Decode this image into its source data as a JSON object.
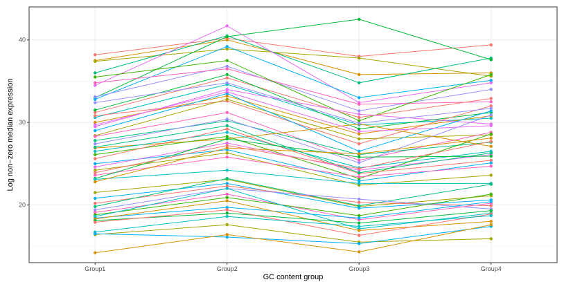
{
  "chart_data": {
    "type": "line",
    "xlabel": "GC content group",
    "ylabel": "Log non−zero median expression",
    "categories": [
      "Group1",
      "Group2",
      "Group3",
      "Group4"
    ],
    "ylim": [
      13.0,
      44.0
    ],
    "yticks": [
      20,
      30,
      40
    ],
    "grid": true,
    "legend": "none",
    "series": [
      {
        "color": "#F8766D",
        "values": [
          38.2,
          40.2,
          38.0,
          39.4
        ]
      },
      {
        "color": "#D89000",
        "values": [
          37.5,
          40.0,
          35.8,
          36.0
        ]
      },
      {
        "color": "#A3A500",
        "values": [
          37.4,
          38.9,
          37.8,
          35.6
        ]
      },
      {
        "color": "#00BF7D",
        "values": [
          36.0,
          40.5,
          34.8,
          37.8
        ]
      },
      {
        "color": "#E76BF3",
        "values": [
          34.5,
          41.7,
          32.4,
          34.8
        ]
      },
      {
        "color": "#00BA38",
        "values": [
          33.0,
          40.4,
          42.5,
          37.6
        ]
      },
      {
        "color": "#00B0F6",
        "values": [
          32.8,
          39.2,
          33.0,
          35.1
        ]
      },
      {
        "color": "#9590FF",
        "values": [
          33.1,
          36.8,
          31.4,
          34.0
        ]
      },
      {
        "color": "#FF62BC",
        "values": [
          34.8,
          36.5,
          32.2,
          32.5
        ]
      },
      {
        "color": "#39B600",
        "values": [
          35.5,
          37.5,
          30.2,
          35.8
        ]
      },
      {
        "color": "#F8766D",
        "values": [
          31.2,
          35.4,
          30.6,
          32.9
        ]
      },
      {
        "color": "#00BFC4",
        "values": [
          30.6,
          34.6,
          29.7,
          30.5
        ]
      },
      {
        "color": "#D89000",
        "values": [
          30.0,
          33.2,
          28.6,
          30.8
        ]
      },
      {
        "color": "#E76BF3",
        "values": [
          29.5,
          34.0,
          31.0,
          29.8
        ]
      },
      {
        "color": "#00BA38",
        "values": [
          31.5,
          35.8,
          29.2,
          31.2
        ]
      },
      {
        "color": "#F8766D",
        "values": [
          30.8,
          32.6,
          27.4,
          32.0
        ]
      },
      {
        "color": "#A3A500",
        "values": [
          28.4,
          32.8,
          28.0,
          28.5
        ]
      },
      {
        "color": "#00B0F6",
        "values": [
          29.0,
          33.5,
          26.5,
          31.4
        ]
      },
      {
        "color": "#FF62BC",
        "values": [
          28.3,
          31.2,
          25.4,
          28.8
        ]
      },
      {
        "color": "#00BF7D",
        "values": [
          27.8,
          30.2,
          26.1,
          27.6
        ]
      },
      {
        "color": "#9590FF",
        "values": [
          27.4,
          30.4,
          25.1,
          30.9
        ]
      },
      {
        "color": "#D89000",
        "values": [
          26.9,
          28.0,
          29.8,
          27.1
        ]
      },
      {
        "color": "#00BFC4",
        "values": [
          26.5,
          28.8,
          24.5,
          26.5
        ]
      },
      {
        "color": "#39B600",
        "values": [
          26.1,
          28.3,
          23.2,
          28.6
        ]
      },
      {
        "color": "#F8766D",
        "values": [
          25.6,
          29.2,
          23.8,
          25.4
        ]
      },
      {
        "color": "#00B0F6",
        "values": [
          25.0,
          26.7,
          22.9,
          25.1
        ]
      },
      {
        "color": "#E76BF3",
        "values": [
          24.6,
          27.5,
          24.2,
          26.1
        ]
      },
      {
        "color": "#A3A500",
        "values": [
          24.2,
          26.3,
          22.4,
          23.6
        ]
      },
      {
        "color": "#FF62BC",
        "values": [
          23.6,
          25.8,
          23.4,
          24.7
        ]
      },
      {
        "color": "#00BA38",
        "values": [
          23.2,
          28.0,
          25.8,
          25.9
        ]
      },
      {
        "color": "#00BFC4",
        "values": [
          23.1,
          24.2,
          22.6,
          22.6
        ]
      },
      {
        "color": "#D89000",
        "values": [
          22.8,
          26.9,
          26.2,
          28.1
        ]
      },
      {
        "color": "#A3A500",
        "values": [
          21.5,
          23.1,
          19.8,
          21.1
        ]
      },
      {
        "color": "#00B0F6",
        "values": [
          20.8,
          22.6,
          19.6,
          20.6
        ]
      },
      {
        "color": "#F8766D",
        "values": [
          20.2,
          22.3,
          20.3,
          19.9
        ]
      },
      {
        "color": "#00BF7D",
        "values": [
          19.8,
          23.2,
          19.9,
          22.5
        ]
      },
      {
        "color": "#9590FF",
        "values": [
          19.4,
          22.0,
          20.7,
          19.5
        ]
      },
      {
        "color": "#FF62BC",
        "values": [
          19.1,
          21.3,
          18.2,
          20.2
        ]
      },
      {
        "color": "#39B600",
        "values": [
          18.8,
          20.9,
          18.7,
          21.3
        ]
      },
      {
        "color": "#00BFC4",
        "values": [
          18.6,
          22.0,
          17.1,
          19.0
        ]
      },
      {
        "color": "#00B0F6",
        "values": [
          18.4,
          19.7,
          18.4,
          20.4
        ]
      },
      {
        "color": "#D89000",
        "values": [
          18.3,
          20.5,
          16.9,
          18.0
        ]
      },
      {
        "color": "#00BA38",
        "values": [
          18.1,
          19.0,
          17.8,
          19.3
        ]
      },
      {
        "color": "#F8766D",
        "values": [
          17.9,
          19.4,
          16.3,
          18.9
        ]
      },
      {
        "color": "#00BFC4",
        "values": [
          16.7,
          18.6,
          17.4,
          18.7
        ]
      },
      {
        "color": "#A3A500",
        "values": [
          16.4,
          17.6,
          15.5,
          15.9
        ]
      },
      {
        "color": "#00B0F6",
        "values": [
          16.5,
          16.1,
          15.3,
          17.4
        ]
      },
      {
        "color": "#D89000",
        "values": [
          14.2,
          16.4,
          14.3,
          17.6
        ]
      },
      {
        "color": "#E76BF3",
        "values": [
          29.7,
          33.7,
          28.9,
          29.6
        ]
      },
      {
        "color": "#00BF7D",
        "values": [
          27.0,
          29.6,
          23.9,
          26.3
        ]
      },
      {
        "color": "#F8766D",
        "values": [
          23.9,
          27.2,
          24.4,
          27.7
        ]
      },
      {
        "color": "#9590FF",
        "values": [
          32.4,
          34.8,
          29.9,
          31.7
        ]
      }
    ]
  }
}
